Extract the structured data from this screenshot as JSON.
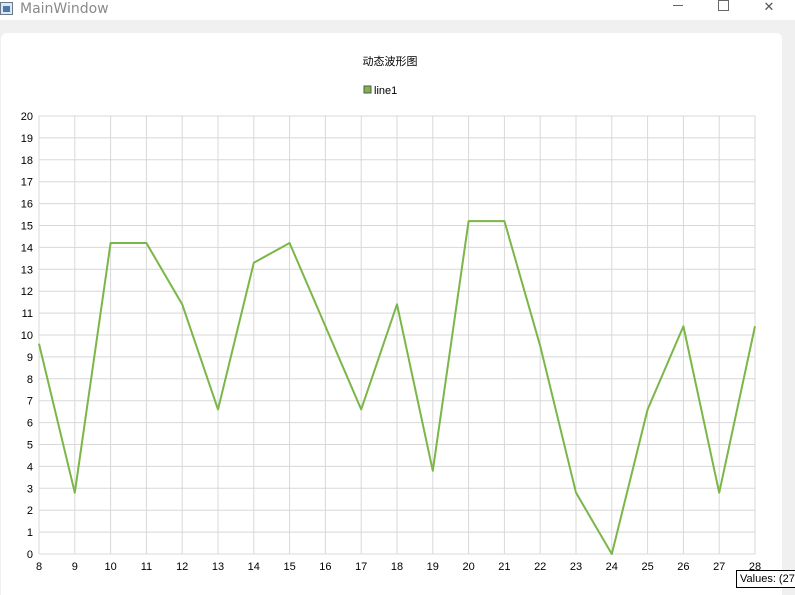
{
  "window": {
    "title": "MainWindow",
    "minimize_icon": "minimize-icon",
    "maximize_icon": "maximize-icon",
    "close_icon": "close-icon",
    "close_glyph": "✕"
  },
  "tooltip": {
    "text": "Values: (27"
  },
  "colors": {
    "line": "#7ab648",
    "grid": "#d8d8d8",
    "axis_text": "#000000"
  },
  "chart_data": {
    "type": "line",
    "title": "动态波形图",
    "legend": {
      "position": "top-center"
    },
    "grid": true,
    "xlim": [
      8,
      28
    ],
    "ylim": [
      0,
      20
    ],
    "x_ticks": [
      "8",
      "9",
      "10",
      "11",
      "12",
      "13",
      "14",
      "15",
      "16",
      "17",
      "18",
      "19",
      "20",
      "21",
      "22",
      "23",
      "24",
      "25",
      "26",
      "27",
      "28"
    ],
    "y_ticks": [
      "0",
      "1",
      "2",
      "3",
      "4",
      "5",
      "6",
      "7",
      "8",
      "9",
      "10",
      "11",
      "12",
      "13",
      "14",
      "15",
      "16",
      "17",
      "18",
      "19",
      "20"
    ],
    "series": [
      {
        "name": "line1",
        "color": "#7ab648",
        "x": [
          8,
          9,
          10,
          11,
          12,
          13,
          14,
          15,
          16,
          17,
          18,
          19,
          20,
          21,
          22,
          23,
          24,
          25,
          26,
          27,
          28
        ],
        "y": [
          9.6,
          2.8,
          14.2,
          14.2,
          11.4,
          6.6,
          13.3,
          14.2,
          10.4,
          6.6,
          11.4,
          3.8,
          15.2,
          15.2,
          9.5,
          2.8,
          0,
          6.6,
          10.4,
          2.8,
          10.4
        ]
      }
    ]
  }
}
